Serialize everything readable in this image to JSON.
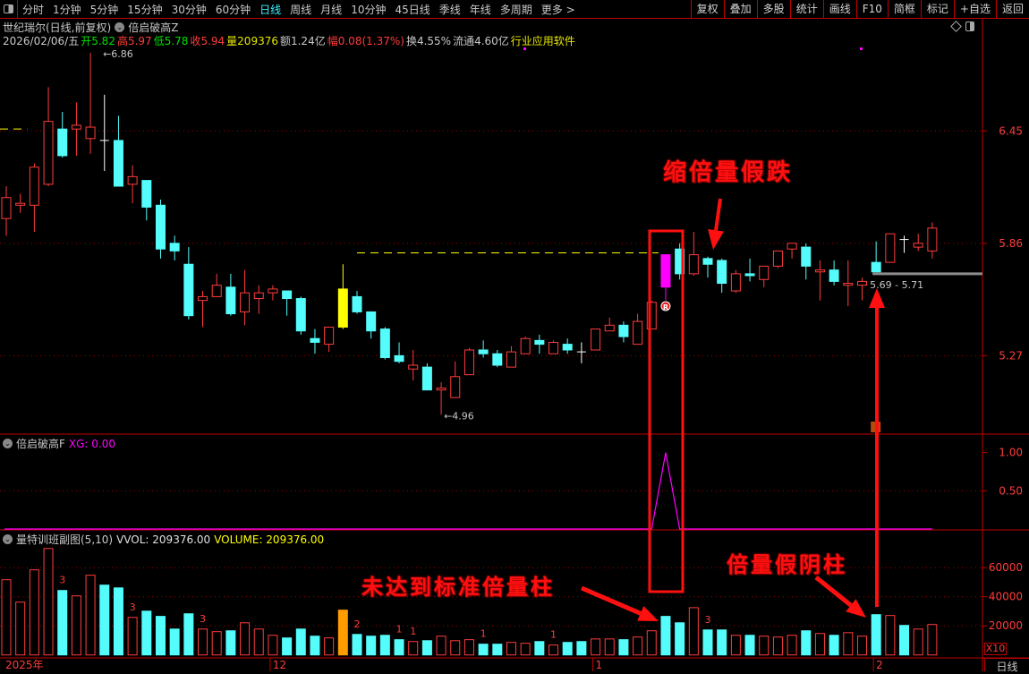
{
  "toolbar": {
    "periods": [
      "分时",
      "1分钟",
      "5分钟",
      "15分钟",
      "30分钟",
      "60分钟",
      "日线",
      "周线",
      "月线",
      "10分钟",
      "45日线",
      "季线",
      "年线",
      "多周期",
      "更多 >"
    ],
    "active_period": "日线",
    "right_buttons": [
      "复权",
      "叠加",
      "多股",
      "统计",
      "画线",
      "F10",
      "简框",
      "标记",
      "+自选",
      "返回"
    ]
  },
  "header": {
    "stock": "世纪瑞尔(日线,前复权)",
    "indicator": "倍启破高Z",
    "date": "2026/02/06/五",
    "open_label": "开",
    "open": "5.82",
    "high_label": "高",
    "high": "5.97",
    "low_label": "低",
    "low": "5.78",
    "close_label": "收",
    "close": "5.94",
    "vol_label": "量",
    "vol": "209376",
    "amount": "额1.24亿",
    "change_label": "幅",
    "change": "0.08(1.37%)",
    "turnover": "换4.55%",
    "float": "流通4.60亿",
    "industry": "行业应用软件"
  },
  "sub2": {
    "name": "倍启破高F",
    "xg": "XG: 0.00"
  },
  "sub3": {
    "name": "量特训班副图(5,10)",
    "vvol": "VVOL: 209376.00",
    "volume": "VOLUME: 209376.00",
    "multiplier": "X10"
  },
  "annotations": {
    "shrink_fake_drop": "缩倍量假跌",
    "not_standard_double": "未达到标准倍量柱",
    "double_fake_yin": "倍量假阴柱",
    "range_label": "5.69 - 5.71",
    "high_mark": "6.86",
    "low_mark": "4.96"
  },
  "period_label": "日线",
  "colors": {
    "up": "#ff3c3c",
    "down": "#54fcfc",
    "doji": "#ffffff",
    "yellow": "#ffff00",
    "magenta": "#ff00ff",
    "orange": "#ff9c00",
    "grid": "#a00000"
  },
  "chart_data": [
    {
      "type": "candlestick",
      "ylim": [
        4.9,
        6.95
      ],
      "y_ticks": [
        "6.45",
        "5.86",
        "5.27"
      ],
      "x_ticks": [
        {
          "index": 0,
          "label": "2025年"
        },
        {
          "index": 19,
          "label": "12"
        },
        {
          "index": 42,
          "label": "1"
        },
        {
          "index": 62,
          "label": "2"
        }
      ],
      "open": [
        5.99,
        6.06,
        6.06,
        6.17,
        6.46,
        6.46,
        6.41,
        6.4,
        6.4,
        6.17,
        6.19,
        6.06,
        5.86,
        5.75,
        5.56,
        5.58,
        5.63,
        5.5,
        5.57,
        5.6,
        5.61,
        5.57,
        5.36,
        5.33,
        5.42,
        5.58,
        5.5,
        5.41,
        5.27,
        5.2,
        5.21,
        5.09,
        5.05,
        5.17,
        5.3,
        5.28,
        5.21,
        5.28,
        5.35,
        5.28,
        5.33,
        5.29,
        5.3,
        5.4,
        5.43,
        5.33,
        5.41,
        5.8,
        5.83,
        5.7,
        5.78,
        5.77,
        5.61,
        5.7,
        5.67,
        5.74,
        5.83,
        5.84,
        5.71,
        5.72,
        5.64,
        5.64,
        5.76,
        5.76,
        5.88,
        5.84,
        5.82
      ],
      "high": [
        6.16,
        6.12,
        6.28,
        6.68,
        6.55,
        6.6,
        6.86,
        6.64,
        6.53,
        6.27,
        6.19,
        6.09,
        5.9,
        5.84,
        5.61,
        5.7,
        5.7,
        5.72,
        5.64,
        5.64,
        5.61,
        5.58,
        5.41,
        5.42,
        5.75,
        5.61,
        5.5,
        5.42,
        5.34,
        5.3,
        5.23,
        5.13,
        5.24,
        5.31,
        5.35,
        5.3,
        5.32,
        5.37,
        5.38,
        5.35,
        5.36,
        5.34,
        5.41,
        5.47,
        5.45,
        5.49,
        5.56,
        5.8,
        5.86,
        5.92,
        5.79,
        5.78,
        5.72,
        5.78,
        5.74,
        5.82,
        5.86,
        5.86,
        5.77,
        5.77,
        5.77,
        5.68,
        5.87,
        5.91,
        5.9,
        5.91,
        5.97
      ],
      "low": [
        5.9,
        6.02,
        5.92,
        6.16,
        6.31,
        6.32,
        6.33,
        6.24,
        6.16,
        6.07,
        5.98,
        5.78,
        5.77,
        5.46,
        5.42,
        5.58,
        5.48,
        5.43,
        5.49,
        5.56,
        5.48,
        5.38,
        5.28,
        5.29,
        5.41,
        5.49,
        5.36,
        5.25,
        5.23,
        5.14,
        5.09,
        4.96,
        5.05,
        5.17,
        5.26,
        5.21,
        5.21,
        5.28,
        5.28,
        5.28,
        5.28,
        5.23,
        5.3,
        5.4,
        5.34,
        5.33,
        5.41,
        5.56,
        5.67,
        5.69,
        5.68,
        5.6,
        5.6,
        5.66,
        5.63,
        5.73,
        5.78,
        5.67,
        5.56,
        5.64,
        5.53,
        5.56,
        5.71,
        5.76,
        5.81,
        5.82,
        5.78
      ],
      "close": [
        6.1,
        6.07,
        6.26,
        6.5,
        6.32,
        6.48,
        6.47,
        6.4,
        6.16,
        6.21,
        6.05,
        5.83,
        5.82,
        5.48,
        5.58,
        5.64,
        5.49,
        5.6,
        5.6,
        5.62,
        5.57,
        5.4,
        5.34,
        5.42,
        5.62,
        5.5,
        5.4,
        5.26,
        5.24,
        5.22,
        5.09,
        5.1,
        5.16,
        5.3,
        5.28,
        5.22,
        5.29,
        5.36,
        5.33,
        5.34,
        5.3,
        5.29,
        5.41,
        5.43,
        5.37,
        5.45,
        5.55,
        5.63,
        5.7,
        5.8,
        5.75,
        5.65,
        5.7,
        5.69,
        5.74,
        5.82,
        5.86,
        5.74,
        5.72,
        5.66,
        5.65,
        5.66,
        5.71,
        5.91,
        5.88,
        5.86,
        5.94
      ],
      "highlight": [
        {
          "index": 24,
          "color": "yellow"
        },
        {
          "index": 47,
          "color": "magenta"
        }
      ],
      "reference_lines": [
        {
          "value": 6.46,
          "from_index": 0,
          "to_index": 2
        },
        {
          "value": 5.81,
          "from_index": 25,
          "to_index": 47
        },
        {
          "value": 5.7,
          "from_index": 62,
          "to_index": 69
        }
      ]
    },
    {
      "type": "line",
      "name": "XG",
      "ylim": [
        0,
        1.1
      ],
      "y_ticks": [
        "1.00",
        "0.50"
      ],
      "values_nonzero": [
        {
          "index": 47,
          "value": 1.0
        }
      ]
    },
    {
      "type": "bar",
      "ylim": [
        0,
        75000
      ],
      "y_ticks": [
        "60000",
        "40000",
        "20000"
      ],
      "values": [
        51700,
        36300,
        58500,
        73200,
        44300,
        40600,
        54800,
        48000,
        46100,
        25800,
        30100,
        26500,
        17800,
        28300,
        17800,
        16000,
        16600,
        22100,
        17800,
        13500,
        11700,
        17800,
        12900,
        11700,
        30800,
        14100,
        12900,
        13500,
        10500,
        9200,
        9800,
        12900,
        9800,
        10500,
        7400,
        7400,
        8600,
        8000,
        9200,
        6800,
        8600,
        9200,
        11000,
        11000,
        10500,
        12300,
        16600,
        26500,
        22100,
        32500,
        17200,
        17200,
        13500,
        13500,
        12900,
        12300,
        13500,
        16600,
        14700,
        13500,
        15300,
        12900,
        27700,
        27100,
        20300,
        17800,
        20900
      ],
      "bar_labels": [
        {
          "index": 4,
          "text": "3"
        },
        {
          "index": 9,
          "text": "3"
        },
        {
          "index": 14,
          "text": "3"
        },
        {
          "index": 25,
          "text": "2"
        },
        {
          "index": 28,
          "text": "1"
        },
        {
          "index": 29,
          "text": "1"
        },
        {
          "index": 34,
          "text": "1"
        },
        {
          "index": 39,
          "text": "1"
        },
        {
          "index": 50,
          "text": "3"
        }
      ]
    }
  ]
}
